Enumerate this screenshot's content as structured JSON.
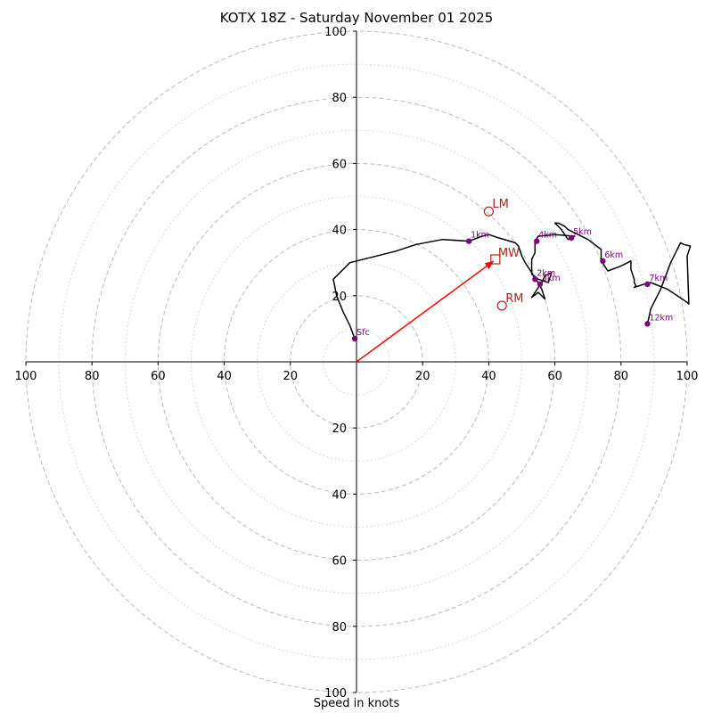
{
  "chart_data": {
    "type": "line",
    "title": "KOTX 18Z - Saturday November 01 2025",
    "xlabel": "Speed in knots",
    "ylabel": "",
    "xlim": [
      -100,
      100
    ],
    "ylim": [
      -100,
      100
    ],
    "ring_major": [
      20,
      40,
      60,
      80,
      100
    ],
    "ring_minor": [
      10,
      30,
      50,
      70,
      90
    ],
    "x_ticks": [
      {
        "value": -100,
        "label": "100"
      },
      {
        "value": -80,
        "label": "80"
      },
      {
        "value": -60,
        "label": "60"
      },
      {
        "value": -40,
        "label": "40"
      },
      {
        "value": -20,
        "label": "20"
      },
      {
        "value": 20,
        "label": "20"
      },
      {
        "value": 40,
        "label": "40"
      },
      {
        "value": 60,
        "label": "60"
      },
      {
        "value": 80,
        "label": "80"
      },
      {
        "value": 100,
        "label": "100"
      }
    ],
    "y_ticks": [
      {
        "value": 100,
        "label": "100"
      },
      {
        "value": 80,
        "label": "80"
      },
      {
        "value": 60,
        "label": "60"
      },
      {
        "value": 40,
        "label": "40"
      },
      {
        "value": 20,
        "label": "20"
      },
      {
        "value": -20,
        "label": "20"
      },
      {
        "value": -40,
        "label": "40"
      },
      {
        "value": -60,
        "label": "60"
      },
      {
        "value": -80,
        "label": "80"
      },
      {
        "value": -100,
        "label": "100"
      }
    ],
    "hodograph": [
      [
        -0.5,
        7
      ],
      [
        -2,
        11
      ],
      [
        -4,
        15
      ],
      [
        -6,
        20
      ],
      [
        -7,
        25
      ],
      [
        -4,
        28
      ],
      [
        -2,
        30
      ],
      [
        0,
        30.5
      ],
      [
        6,
        32
      ],
      [
        12,
        33.5
      ],
      [
        18,
        35.5
      ],
      [
        26,
        37
      ],
      [
        34,
        36.5
      ],
      [
        38,
        38
      ],
      [
        40,
        38.5
      ],
      [
        43,
        37.5
      ],
      [
        48,
        36
      ],
      [
        49,
        35
      ],
      [
        50,
        32
      ],
      [
        51,
        30
      ],
      [
        53,
        27
      ],
      [
        54,
        25
      ],
      [
        55,
        24
      ],
      [
        56,
        22
      ],
      [
        57,
        19
      ],
      [
        55,
        21
      ],
      [
        53,
        19.5
      ],
      [
        56,
        24
      ],
      [
        57,
        26
      ],
      [
        59,
        27
      ],
      [
        58,
        24
      ],
      [
        55,
        25
      ],
      [
        53,
        26.5
      ],
      [
        53,
        27.5
      ],
      [
        53,
        31
      ],
      [
        54,
        33
      ],
      [
        54,
        36.5
      ],
      [
        55,
        38
      ],
      [
        60,
        38.5
      ],
      [
        66,
        38
      ],
      [
        64,
        37
      ],
      [
        63,
        38.5
      ],
      [
        62,
        40
      ],
      [
        61,
        41
      ],
      [
        60,
        42
      ],
      [
        61,
        42
      ],
      [
        63,
        41
      ],
      [
        64,
        40
      ],
      [
        66,
        39
      ],
      [
        70,
        37
      ],
      [
        74,
        34
      ],
      [
        74,
        31
      ],
      [
        75,
        29
      ],
      [
        76,
        27.5
      ],
      [
        80,
        29
      ],
      [
        83,
        30.5
      ],
      [
        83,
        28
      ],
      [
        84,
        25
      ],
      [
        84,
        24
      ],
      [
        84.5,
        23
      ],
      [
        84,
        22.5
      ],
      [
        87,
        23.5
      ],
      [
        89,
        24
      ],
      [
        94,
        22
      ],
      [
        100,
        18
      ],
      [
        100.5,
        17.5
      ],
      [
        100,
        32
      ],
      [
        101,
        35
      ],
      [
        99,
        35.5
      ],
      [
        98,
        36
      ],
      [
        95,
        30
      ],
      [
        92,
        22
      ],
      [
        89,
        16
      ],
      [
        88,
        11.5
      ]
    ],
    "height_markers": [
      {
        "label": "Sfc",
        "x": -0.5,
        "y": 7
      },
      {
        "label": "1km",
        "x": 34,
        "y": 36.5
      },
      {
        "label": "2km",
        "x": 54,
        "y": 25
      },
      {
        "label": "3km",
        "x": 55.5,
        "y": 23.5
      },
      {
        "label": "4km",
        "x": 54.5,
        "y": 36.5
      },
      {
        "label": "5km",
        "x": 65,
        "y": 37.5
      },
      {
        "label": "6km",
        "x": 74.5,
        "y": 30.5
      },
      {
        "label": "7km",
        "x": 88,
        "y": 23.5
      },
      {
        "label": "12km",
        "x": 88,
        "y": 11.5
      }
    ],
    "storm_motion": {
      "mean_wind": {
        "label": "MW",
        "x": 42,
        "y": 31
      },
      "left_mover": {
        "label": "LM",
        "x": 40,
        "y": 45.5
      },
      "right_mover": {
        "label": "RM",
        "x": 44,
        "y": 17
      }
    },
    "colors": {
      "hodograph": "#000000",
      "markers": "#800080",
      "storm": "#b22222",
      "mean_wind_arrow": "#ff0000",
      "rings": "#bbbbbb"
    }
  }
}
